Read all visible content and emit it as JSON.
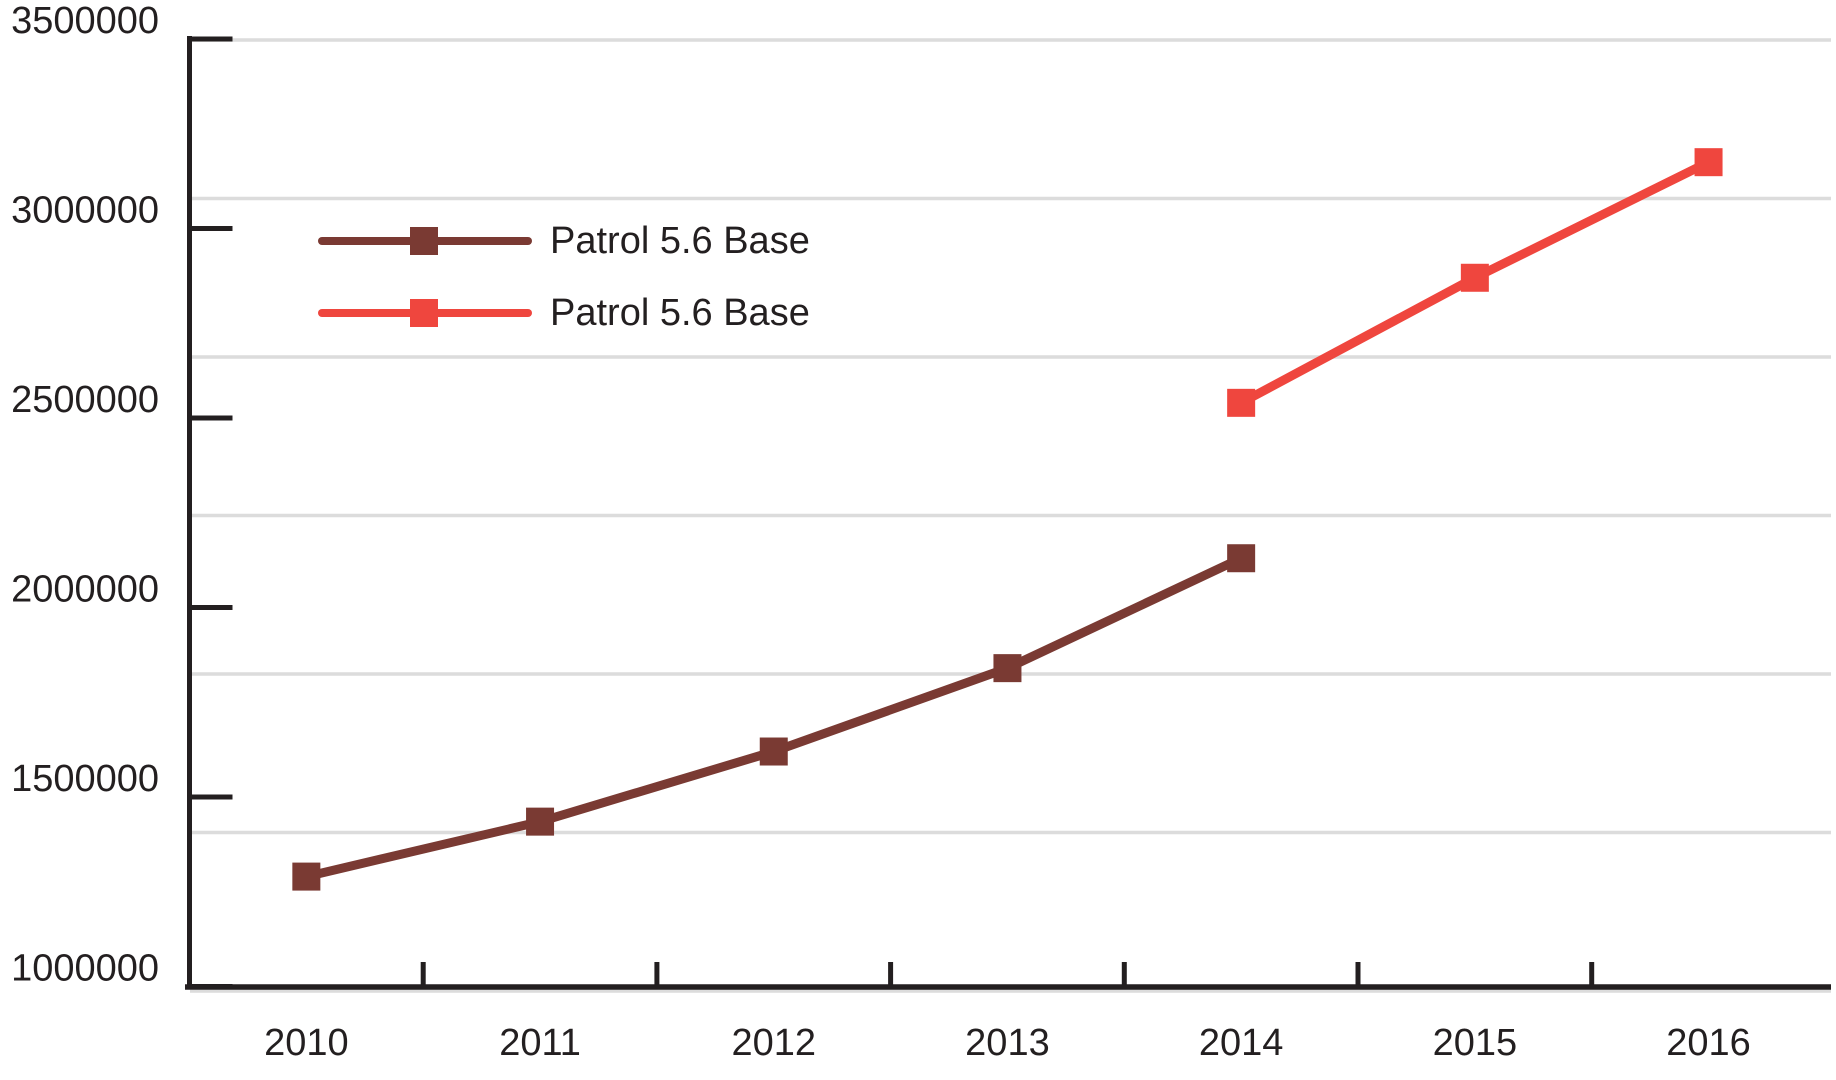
{
  "page": {
    "background_color": "#FFFFFF"
  },
  "chart_data": {
    "type": "line",
    "title": "",
    "xlabel": "",
    "ylabel": "",
    "categories": [
      "2010",
      "2011",
      "2012",
      "2013",
      "2014",
      "2015",
      "2016"
    ],
    "x_range": [
      2010,
      2016
    ],
    "ylim": [
      1000000,
      3500000
    ],
    "y_tick_step": 500000,
    "y_ticks": [
      3500000,
      3000000,
      2500000,
      2000000,
      1500000,
      1000000
    ],
    "y_tick_labels": [
      "3500000",
      "3000000",
      "2500000",
      "2000000",
      "1500000",
      "1000000"
    ],
    "grid": "horizontal",
    "gridline_color": "#DCDCDC",
    "axis_color": "#231F20",
    "text_color": "#231F20",
    "legend_position": "upper-left-inside",
    "marker_shape": "square",
    "series": [
      {
        "name": "Patrol 5.6 Base",
        "color": "#7A3A33",
        "marker": "square",
        "x": [
          2010,
          2011,
          2012,
          2013,
          2014
        ],
        "values": [
          1290000,
          1435000,
          1620000,
          1840000,
          2130000
        ]
      },
      {
        "name": "Patrol 5.6 Base",
        "color": "#EF463E",
        "marker": "square",
        "x": [
          2014,
          2015,
          2016
        ],
        "values": [
          2540000,
          2870000,
          3175000
        ]
      }
    ]
  }
}
